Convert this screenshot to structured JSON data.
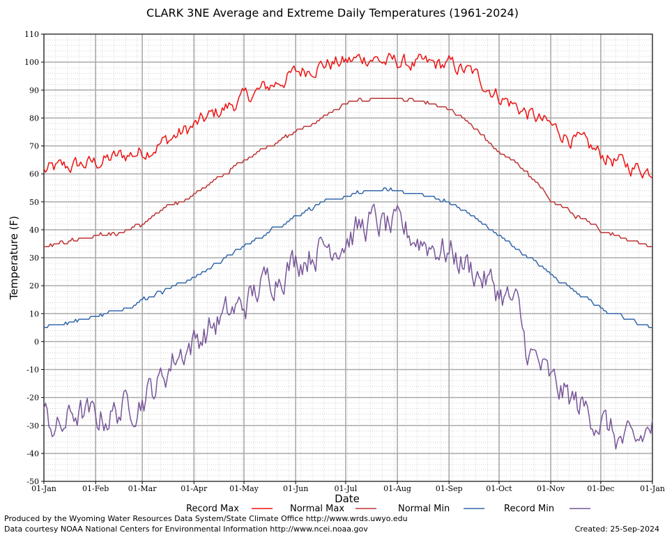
{
  "chart_data": {
    "type": "line",
    "title": "CLARK 3NE Average and Extreme Daily Temperatures (1961-2024)",
    "xlabel": "Date",
    "ylabel": "Temperature (F)",
    "ylim": [
      -50,
      110
    ],
    "yticks": [
      "110",
      "100",
      "90",
      "80",
      "70",
      "60",
      "50",
      "40",
      "30",
      "20",
      "10",
      "0",
      "-10",
      "-20",
      "-30",
      "-40",
      "-50"
    ],
    "xticks": [
      "01-Jan",
      "01-Feb",
      "01-Mar",
      "01-Apr",
      "01-May",
      "01-Jun",
      "01-Jul",
      "01-Aug",
      "01-Sep",
      "01-Oct",
      "01-Nov",
      "01-Dec",
      "01-Jan"
    ],
    "xtick_days": [
      1,
      32,
      60,
      91,
      121,
      152,
      182,
      213,
      244,
      274,
      305,
      335,
      366
    ],
    "grid": true,
    "legend_position": "bottom",
    "series": [
      {
        "name": "Record Max",
        "color": "#ee1111",
        "noise": 2.5,
        "x": [
          1,
          10,
          20,
          32,
          45,
          60,
          75,
          91,
          105,
          121,
          135,
          152,
          165,
          182,
          190,
          197,
          205,
          213,
          225,
          244,
          258,
          274,
          290,
          305,
          320,
          335,
          350,
          366
        ],
        "values": [
          61,
          62,
          63,
          64,
          66,
          68,
          72,
          77,
          82,
          87,
          91,
          96,
          99,
          100,
          101,
          102,
          100,
          100,
          99,
          99,
          96,
          88,
          82,
          77,
          72,
          67,
          63,
          61
        ]
      },
      {
        "name": "Normal Max",
        "color": "#bb3333",
        "noise": 0.5,
        "x": [
          1,
          15,
          32,
          45,
          60,
          75,
          91,
          105,
          121,
          135,
          152,
          165,
          182,
          190,
          197,
          205,
          213,
          225,
          244,
          258,
          274,
          290,
          305,
          320,
          335,
          350,
          366
        ],
        "values": [
          34,
          36,
          38,
          38.5,
          42,
          48,
          53,
          58,
          65,
          70,
          75,
          79,
          85,
          86,
          87,
          87,
          87,
          86,
          83,
          77,
          68,
          61,
          51,
          45,
          40,
          37,
          34
        ]
      },
      {
        "name": "Normal Min",
        "color": "#3366aa",
        "noise": 0.5,
        "x": [
          1,
          15,
          32,
          45,
          60,
          75,
          91,
          105,
          121,
          135,
          152,
          165,
          182,
          190,
          197,
          205,
          213,
          225,
          244,
          258,
          274,
          290,
          305,
          320,
          335,
          350,
          366
        ],
        "values": [
          5,
          7,
          9,
          11,
          15,
          19,
          23,
          28,
          34,
          39,
          45,
          49,
          52,
          53,
          54,
          54,
          54,
          53,
          50,
          45,
          38,
          31,
          24,
          18,
          12,
          8,
          5
        ]
      },
      {
        "name": "Record Min",
        "color": "#775599",
        "noise": 5,
        "x": [
          1,
          10,
          20,
          32,
          45,
          60,
          70,
          80,
          91,
          105,
          121,
          135,
          152,
          165,
          182,
          190,
          197,
          205,
          213,
          225,
          244,
          258,
          274,
          285,
          290,
          300,
          305,
          320,
          335,
          345,
          355,
          366
        ],
        "values": [
          -27,
          -32,
          -25,
          -28,
          -25,
          -20,
          -15,
          -5,
          0,
          7,
          13,
          22,
          29,
          33,
          37,
          40,
          43,
          41,
          40,
          37,
          32,
          26,
          18,
          12,
          -2,
          -10,
          -15,
          -22,
          -28,
          -35,
          -38,
          -30
        ]
      }
    ]
  },
  "footer": {
    "produced_by": "Produced by the Wyoming Water Resources Data System/State Climate Office http://www.wrds.uwyo.edu",
    "data_courtesy": "Data courtesy NOAA National Centers for Environmental Information http://www.ncei.noaa.gov",
    "created": "Created:  25-Sep-2024"
  }
}
